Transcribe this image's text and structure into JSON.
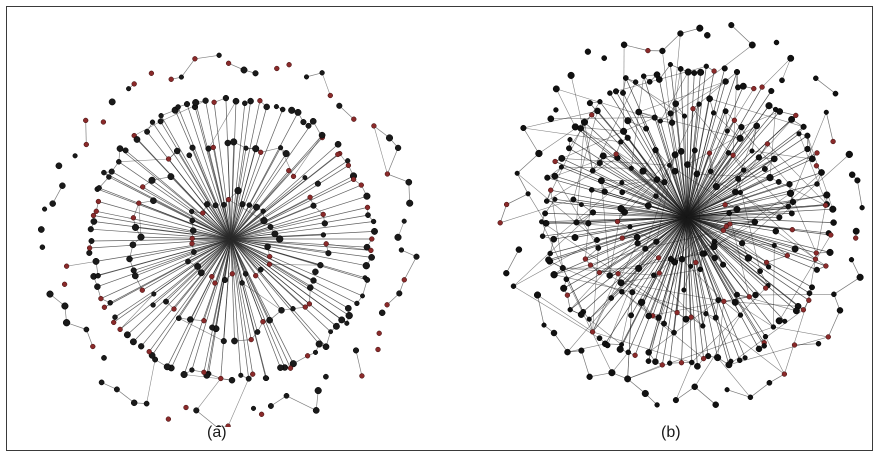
{
  "figure": {
    "panels": [
      {
        "caption": "(a)",
        "layout": "radial-rings",
        "edge_color": "#2a2a2a",
        "node_colors": [
          "#1a1a1a",
          "#8a2a2a"
        ]
      },
      {
        "caption": "(b)",
        "layout": "dense-radial",
        "edge_color": "#1a1a1a",
        "node_colors": [
          "#111111",
          "#8a2a2a"
        ]
      }
    ]
  }
}
